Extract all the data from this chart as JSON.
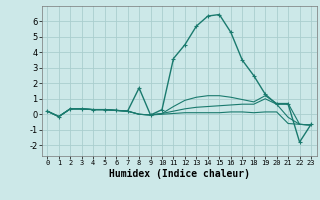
{
  "xlabel": "Humidex (Indice chaleur)",
  "bg_color": "#cce8e8",
  "grid_color": "#aacece",
  "line_color": "#1a7a6e",
  "xlim": [
    -0.5,
    23.5
  ],
  "ylim": [
    -2.7,
    7.0
  ],
  "yticks": [
    -2,
    -1,
    0,
    1,
    2,
    3,
    4,
    5,
    6
  ],
  "xticks": [
    0,
    1,
    2,
    3,
    4,
    5,
    6,
    7,
    8,
    9,
    10,
    11,
    12,
    13,
    14,
    15,
    16,
    17,
    18,
    19,
    20,
    21,
    22,
    23
  ],
  "series": [
    {
      "x": [
        0,
        1,
        2,
        3,
        4,
        5,
        6,
        7,
        8,
        9,
        10,
        11,
        12,
        13,
        14,
        15,
        16,
        17,
        18,
        19,
        20,
        21,
        22,
        23
      ],
      "y": [
        0.2,
        -0.15,
        0.35,
        0.35,
        0.3,
        0.3,
        0.25,
        0.2,
        0.0,
        -0.05,
        0.0,
        0.05,
        0.1,
        0.1,
        0.1,
        0.1,
        0.15,
        0.15,
        0.1,
        0.15,
        0.15,
        -0.6,
        -0.65,
        -0.7
      ],
      "marker": false,
      "lw": 0.8
    },
    {
      "x": [
        0,
        1,
        2,
        3,
        4,
        5,
        6,
        7,
        8,
        9,
        10,
        11,
        12,
        13,
        14,
        15,
        16,
        17,
        18,
        19,
        20,
        21,
        22,
        23
      ],
      "y": [
        0.2,
        -0.15,
        0.35,
        0.35,
        0.3,
        0.3,
        0.25,
        0.2,
        0.0,
        -0.05,
        0.05,
        0.2,
        0.35,
        0.45,
        0.5,
        0.55,
        0.6,
        0.65,
        0.65,
        1.0,
        0.65,
        -0.2,
        -0.65,
        -0.7
      ],
      "marker": false,
      "lw": 0.8
    },
    {
      "x": [
        0,
        1,
        2,
        3,
        4,
        5,
        6,
        7,
        8,
        9,
        10,
        11,
        12,
        13,
        14,
        15,
        16,
        17,
        18,
        19,
        20,
        21,
        22,
        23
      ],
      "y": [
        0.2,
        -0.15,
        0.35,
        0.35,
        0.3,
        0.3,
        0.25,
        0.2,
        0.0,
        -0.05,
        0.05,
        0.5,
        0.9,
        1.1,
        1.2,
        1.2,
        1.1,
        0.95,
        0.8,
        1.2,
        0.7,
        0.7,
        -0.65,
        -0.7
      ],
      "marker": false,
      "lw": 0.8
    },
    {
      "x": [
        0,
        1,
        2,
        3,
        4,
        5,
        6,
        7,
        8,
        9,
        10,
        11,
        12,
        13,
        14,
        15,
        16,
        17,
        18,
        19,
        20,
        21,
        22,
        23
      ],
      "y": [
        0.2,
        -0.15,
        0.35,
        0.35,
        0.3,
        0.3,
        0.25,
        0.2,
        1.7,
        -0.05,
        0.3,
        3.6,
        4.5,
        5.7,
        6.35,
        6.45,
        5.3,
        3.5,
        2.5,
        1.3,
        0.65,
        0.65,
        -1.8,
        -0.65
      ],
      "marker": true,
      "lw": 1.0
    }
  ]
}
